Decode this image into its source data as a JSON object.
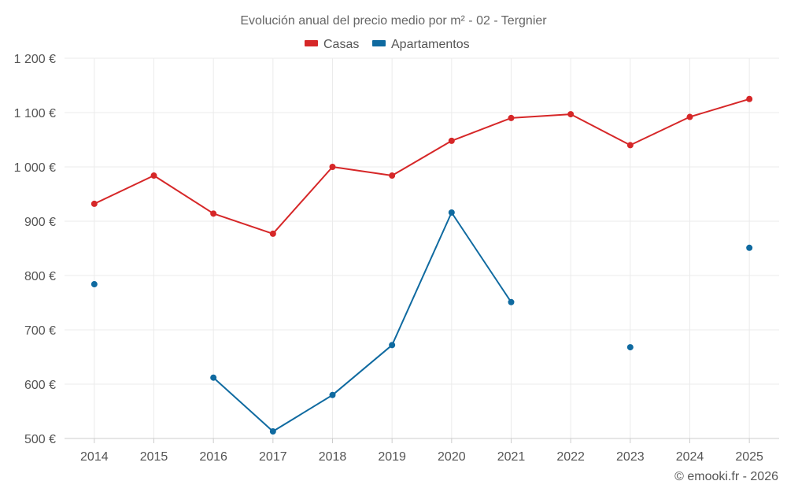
{
  "chart_data": {
    "type": "line",
    "title": "Evolución anual del precio medio por m² - 02 - Tergnier",
    "xlabel": "",
    "ylabel": "",
    "categories": [
      "2014",
      "2015",
      "2016",
      "2017",
      "2018",
      "2019",
      "2020",
      "2021",
      "2022",
      "2023",
      "2024",
      "2025"
    ],
    "ylim": [
      500,
      1200
    ],
    "yticks": [
      500,
      600,
      700,
      800,
      900,
      1000,
      1100,
      1200
    ],
    "ytick_labels": [
      "500 €",
      "600 €",
      "700 €",
      "800 €",
      "900 €",
      "1 000 €",
      "1 100 €",
      "1 200 €"
    ],
    "grid": true,
    "legend_position": "top-center",
    "series": [
      {
        "name": "Casas",
        "color": "#d62728",
        "values": [
          932,
          984,
          914,
          877,
          1000,
          984,
          1048,
          1090,
          1097,
          1040,
          1092,
          1125
        ]
      },
      {
        "name": "Apartamentos",
        "color": "#0f6aa0",
        "values": [
          784,
          null,
          612,
          513,
          580,
          672,
          916,
          751,
          null,
          668,
          null,
          851
        ]
      }
    ]
  },
  "credit": "© emooki.fr - 2026"
}
